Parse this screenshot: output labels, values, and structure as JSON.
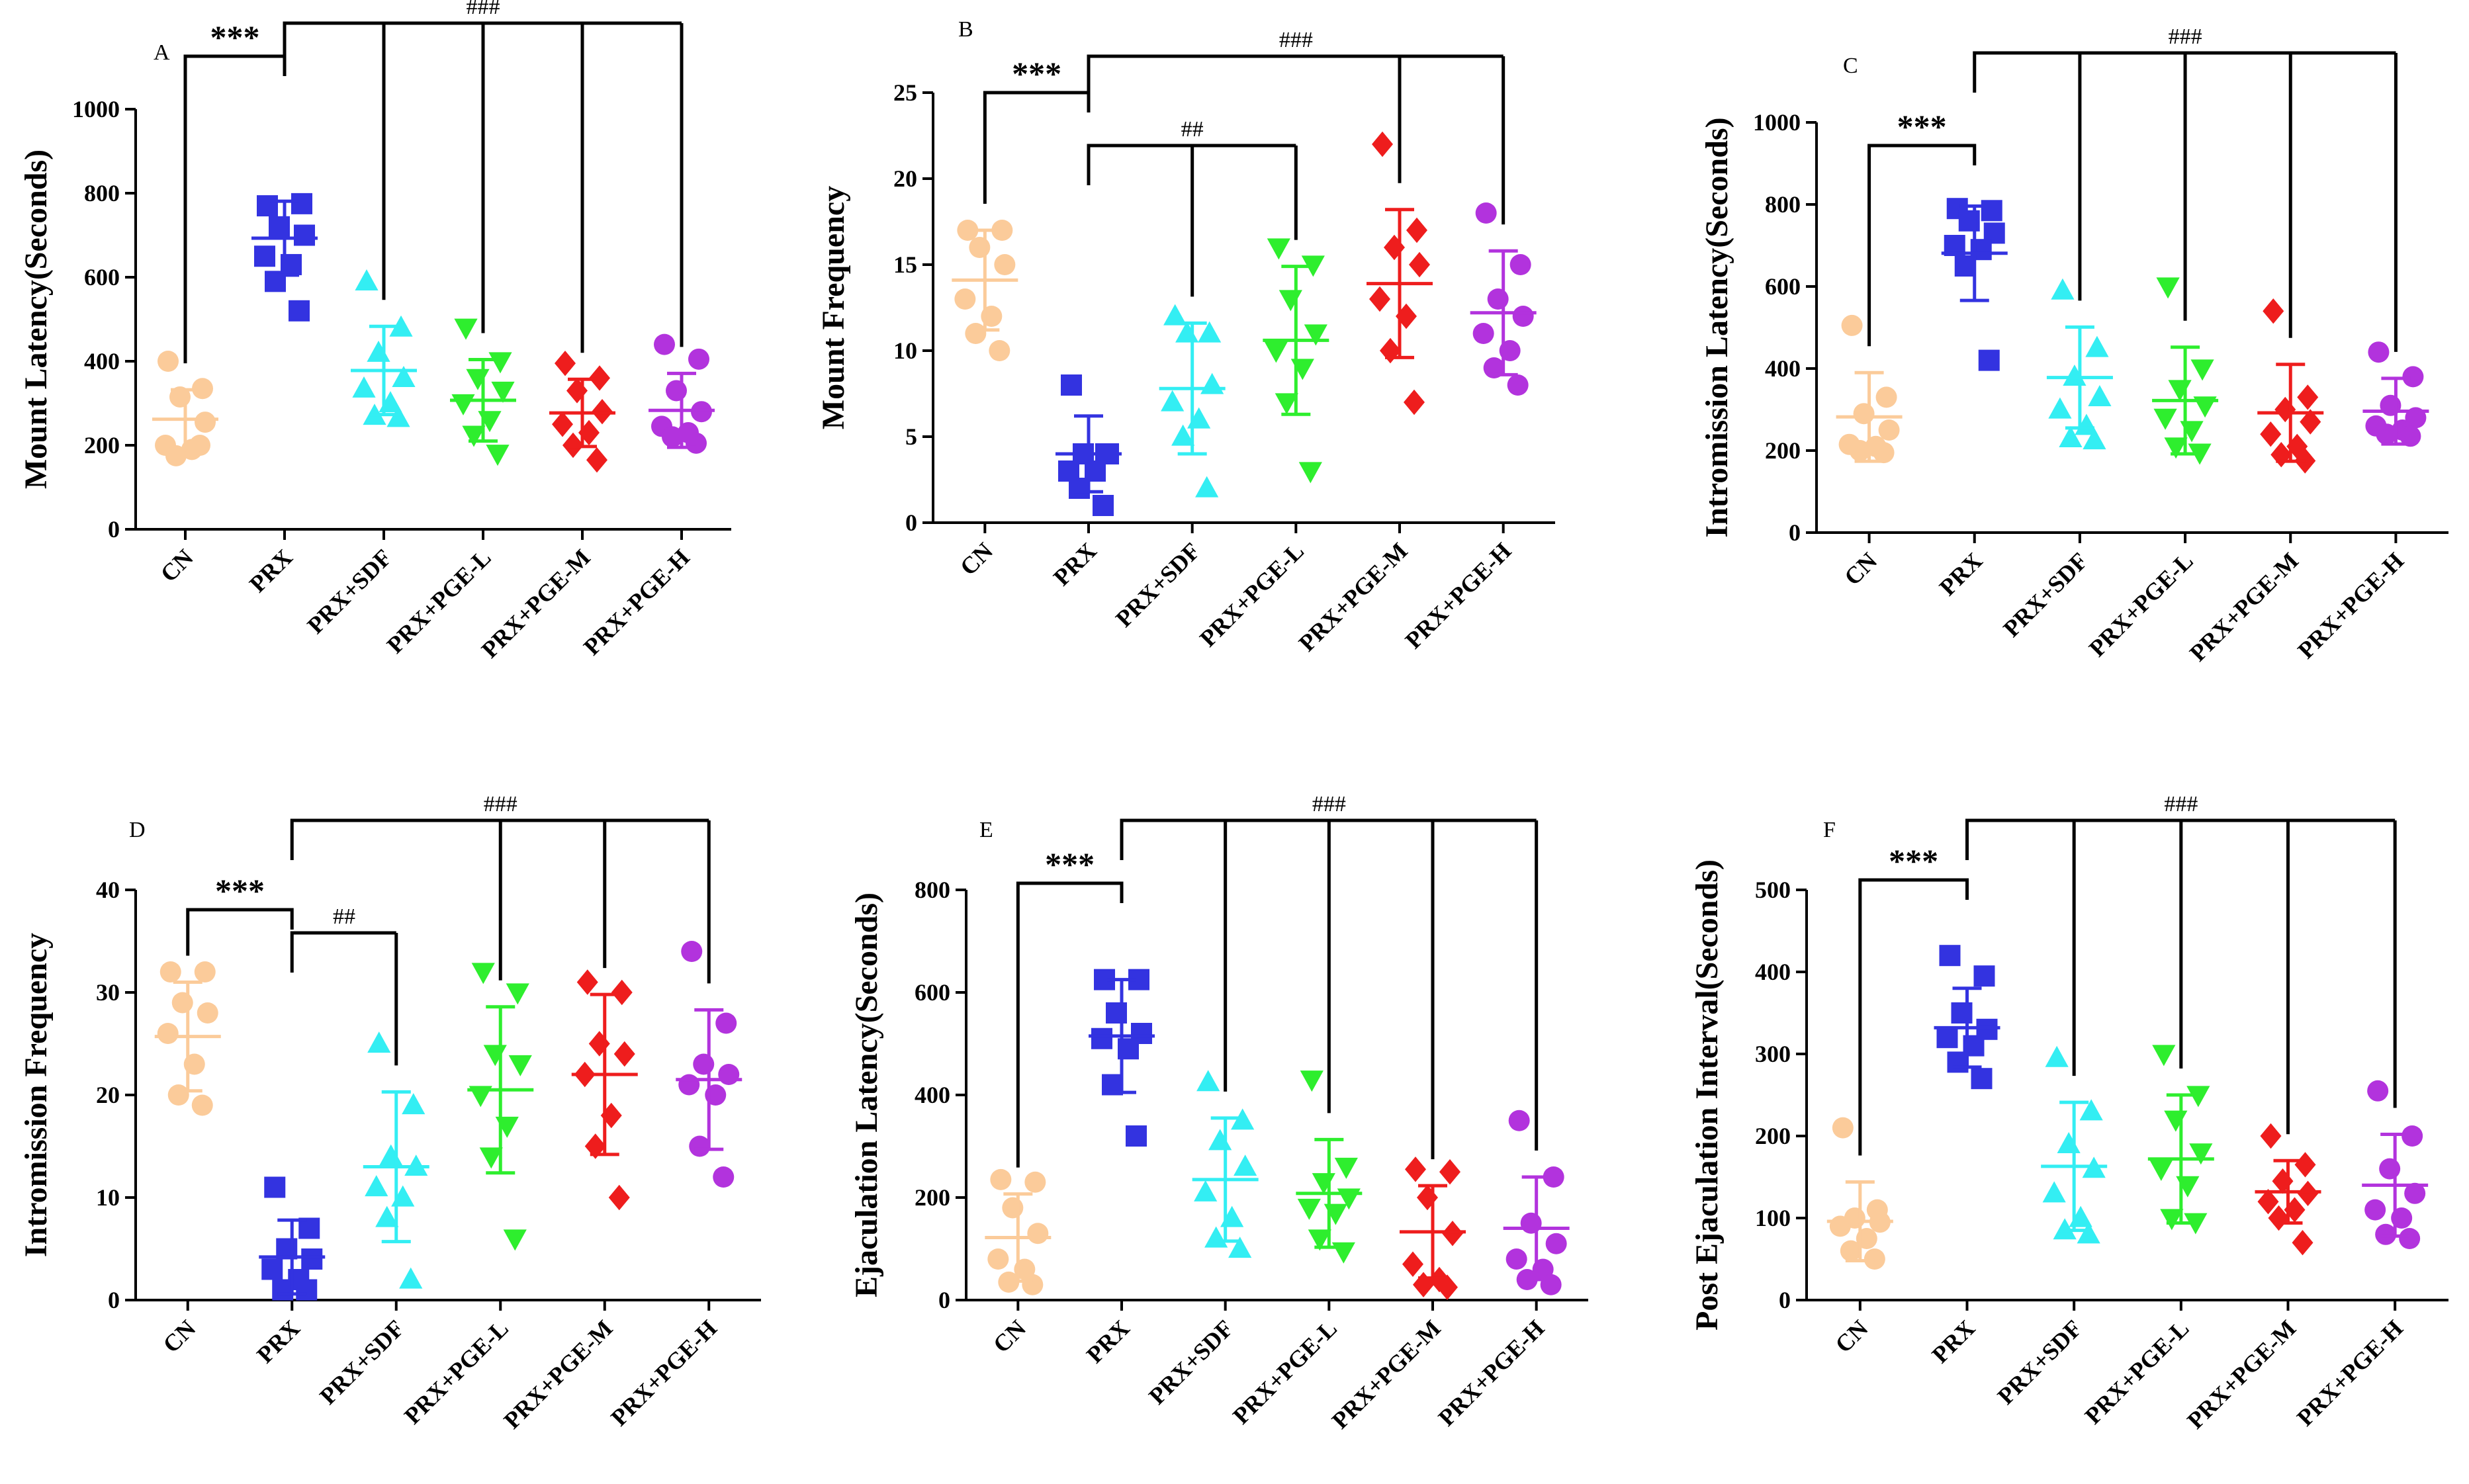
{
  "figure": {
    "group_colors": [
      "#FBCB9A",
      "#3333E0",
      "#33EEF3",
      "#2EEE2E",
      "#EE1D1D",
      "#B233DD"
    ]
  },
  "chart_data": [
    {
      "type": "scatter",
      "panel": "A",
      "title": "",
      "ylabel": "Mount Latency(Seconds)",
      "xlabel": "",
      "ylim": [
        0,
        1000
      ],
      "yticks": [
        0,
        200,
        400,
        600,
        800,
        1000
      ],
      "categories": [
        "CN",
        "PRX",
        "PRX+SDF",
        "PRX+PGE-L",
        "PRX+PGE-M",
        "PRX+PGE-H"
      ],
      "marker": [
        "circle",
        "square",
        "triangle-up",
        "triangle-down",
        "diamond",
        "circle"
      ],
      "mean": [
        262,
        693,
        378,
        307,
        277,
        283
      ],
      "sd": [
        70,
        88,
        105,
        97,
        80,
        88
      ],
      "points": [
        [
          400,
          335,
          315,
          255,
          200,
          190,
          175,
          200
        ],
        [
          770,
          775,
          720,
          700,
          650,
          630,
          590,
          520
        ],
        [
          590,
          480,
          420,
          360,
          335,
          300,
          270,
          265
        ],
        [
          480,
          400,
          360,
          330,
          300,
          260,
          225,
          180
        ],
        [
          395,
          360,
          330,
          280,
          250,
          230,
          200,
          165
        ],
        [
          440,
          405,
          330,
          280,
          245,
          230,
          220,
          205
        ]
      ],
      "significance": [
        {
          "label": "***",
          "groups": [
            0,
            1
          ],
          "type": "stars"
        },
        {
          "label": "###",
          "from": 1,
          "to": [
            2,
            3,
            4,
            5
          ],
          "type": "hash"
        }
      ]
    },
    {
      "type": "scatter",
      "panel": "B",
      "title": "",
      "ylabel": "Mount Frequency",
      "xlabel": "",
      "ylim": [
        0,
        25
      ],
      "yticks": [
        0,
        5,
        10,
        15,
        20,
        25
      ],
      "categories": [
        "CN",
        "PRX",
        "PRX+SDF",
        "PRX+PGE-L",
        "PRX+PGE-M",
        "PRX+PGE-H"
      ],
      "marker": [
        "circle",
        "square",
        "triangle-up",
        "triangle-down",
        "diamond",
        "circle"
      ],
      "mean": [
        14.1,
        4.0,
        7.8,
        10.6,
        13.9,
        12.2
      ],
      "sd": [
        2.9,
        2.2,
        3.8,
        4.3,
        4.3,
        3.6
      ],
      "points": [
        [
          17,
          17,
          16,
          15,
          13,
          12,
          11,
          10
        ],
        [
          8,
          4,
          4,
          4,
          3,
          3,
          2,
          1
        ],
        [
          12,
          11,
          11,
          8,
          7,
          6,
          5,
          2
        ],
        [
          16,
          15,
          13,
          11,
          10,
          9,
          7,
          3
        ],
        [
          22,
          17,
          16,
          15,
          13,
          12,
          10,
          7
        ],
        [
          18,
          15,
          13,
          12,
          11,
          10,
          9,
          8
        ]
      ],
      "significance": [
        {
          "label": "***",
          "groups": [
            0,
            1
          ],
          "type": "stars"
        },
        {
          "label": "##",
          "from": 1,
          "to": [
            2,
            3
          ],
          "type": "hash"
        },
        {
          "label": "###",
          "from": 1,
          "to": [
            4,
            5
          ],
          "type": "hash"
        }
      ]
    },
    {
      "type": "scatter",
      "panel": "C",
      "title": "",
      "ylabel": "Intromission Latency(Seconds)",
      "xlabel": "",
      "ylim": [
        0,
        1000
      ],
      "yticks": [
        0,
        200,
        400,
        600,
        800,
        1000
      ],
      "categories": [
        "CN",
        "PRX",
        "PRX+SDF",
        "PRX+PGE-L",
        "PRX+PGE-M",
        "PRX+PGE-H"
      ],
      "marker": [
        "circle",
        "square",
        "triangle-up",
        "triangle-down",
        "diamond",
        "circle"
      ],
      "mean": [
        282,
        681,
        378,
        322,
        292,
        296
      ],
      "sd": [
        108,
        115,
        123,
        130,
        118,
        80
      ],
      "points": [
        [
          505,
          330,
          290,
          250,
          215,
          210,
          200,
          195
        ],
        [
          790,
          785,
          760,
          730,
          700,
          690,
          650,
          420
        ],
        [
          590,
          450,
          380,
          330,
          300,
          260,
          230,
          225
        ],
        [
          600,
          400,
          350,
          310,
          280,
          250,
          210,
          195
        ],
        [
          540,
          330,
          300,
          270,
          240,
          210,
          190,
          175
        ],
        [
          440,
          380,
          310,
          280,
          260,
          250,
          240,
          235
        ]
      ],
      "significance": [
        {
          "label": "***",
          "groups": [
            0,
            1
          ],
          "type": "stars"
        },
        {
          "label": "###",
          "from": 1,
          "to": [
            2,
            3,
            4,
            5
          ],
          "type": "hash"
        }
      ]
    },
    {
      "type": "scatter",
      "panel": "D",
      "title": "",
      "ylabel": "Intromission Frequency",
      "xlabel": "",
      "ylim": [
        0,
        40
      ],
      "yticks": [
        0,
        10,
        20,
        30,
        40
      ],
      "categories": [
        "CN",
        "PRX",
        "PRX+SDF",
        "PRX+PGE-L",
        "PRX+PGE-M",
        "PRX+PGE-H"
      ],
      "marker": [
        "circle",
        "square",
        "triangle-up",
        "triangle-down",
        "diamond",
        "circle"
      ],
      "mean": [
        25.7,
        4.2,
        13.0,
        20.5,
        22.0,
        21.5
      ],
      "sd": [
        5.3,
        3.6,
        7.3,
        8.1,
        7.8,
        6.8
      ],
      "points": [
        [
          32,
          32,
          29,
          28,
          26,
          23,
          20,
          19
        ],
        [
          11,
          7,
          5,
          4,
          3,
          2,
          1,
          1
        ],
        [
          25,
          19,
          14,
          13,
          11,
          10,
          8,
          2
        ],
        [
          32,
          30,
          24,
          23,
          20,
          17,
          14,
          6
        ],
        [
          31,
          30,
          25,
          24,
          22,
          18,
          15,
          10
        ],
        [
          34,
          27,
          23,
          22,
          21,
          20,
          15,
          12
        ]
      ],
      "significance": [
        {
          "label": "***",
          "groups": [
            0,
            1
          ],
          "type": "stars"
        },
        {
          "label": "##",
          "from": 1,
          "to": [
            2
          ],
          "type": "hash"
        },
        {
          "label": "###",
          "from": 1,
          "to": [
            3,
            4,
            5
          ],
          "type": "hash"
        }
      ]
    },
    {
      "type": "scatter",
      "panel": "E",
      "title": "",
      "ylabel": "Ejaculation Latency(Seconds)",
      "xlabel": "",
      "ylim": [
        0,
        800
      ],
      "yticks": [
        0,
        200,
        400,
        600,
        800
      ],
      "categories": [
        "CN",
        "PRX",
        "PRX+SDF",
        "PRX+PGE-L",
        "PRX+PGE-M",
        "PRX+PGE-H"
      ],
      "marker": [
        "circle",
        "square",
        "triangle-up",
        "triangle-down",
        "diamond",
        "circle"
      ],
      "mean": [
        122,
        515,
        235,
        208,
        133,
        140
      ],
      "sd": [
        85,
        110,
        120,
        105,
        90,
        100
      ],
      "points": [
        [
          235,
          230,
          180,
          130,
          80,
          60,
          35,
          30
        ],
        [
          625,
          625,
          560,
          520,
          510,
          490,
          420,
          320
        ],
        [
          425,
          350,
          310,
          260,
          210,
          160,
          120,
          100
        ],
        [
          430,
          260,
          230,
          200,
          180,
          170,
          120,
          95
        ],
        [
          255,
          250,
          200,
          130,
          70,
          40,
          30,
          25
        ],
        [
          350,
          240,
          150,
          110,
          80,
          60,
          40,
          30
        ]
      ],
      "significance": [
        {
          "label": "***",
          "groups": [
            0,
            1
          ],
          "type": "stars"
        },
        {
          "label": "###",
          "from": 1,
          "to": [
            2,
            3,
            4,
            5
          ],
          "type": "hash"
        }
      ]
    },
    {
      "type": "scatter",
      "panel": "F",
      "title": "",
      "ylabel": "Post Ejaculation Interval(Seconds)",
      "xlabel": "",
      "ylim": [
        0,
        500
      ],
      "yticks": [
        0,
        100,
        200,
        300,
        400,
        500
      ],
      "categories": [
        "CN",
        "PRX",
        "PRX+SDF",
        "PRX+PGE-L",
        "PRX+PGE-M",
        "PRX+PGE-H"
      ],
      "marker": [
        "circle",
        "square",
        "triangle-up",
        "triangle-down",
        "diamond",
        "circle"
      ],
      "mean": [
        96,
        332,
        163,
        172,
        132,
        140
      ],
      "sd": [
        48,
        48,
        78,
        78,
        38,
        62
      ],
      "points": [
        [
          210,
          110,
          100,
          95,
          90,
          75,
          60,
          50
        ],
        [
          420,
          395,
          350,
          330,
          320,
          310,
          290,
          270
        ],
        [
          295,
          230,
          190,
          160,
          130,
          100,
          85,
          80
        ],
        [
          300,
          250,
          220,
          180,
          160,
          140,
          100,
          95
        ],
        [
          200,
          165,
          145,
          130,
          120,
          110,
          100,
          70
        ],
        [
          255,
          200,
          160,
          130,
          110,
          100,
          80,
          75
        ]
      ],
      "significance": [
        {
          "label": "***",
          "groups": [
            0,
            1
          ],
          "type": "stars"
        },
        {
          "label": "###",
          "from": 1,
          "to": [
            2,
            3,
            4,
            5
          ],
          "type": "hash"
        }
      ]
    }
  ]
}
